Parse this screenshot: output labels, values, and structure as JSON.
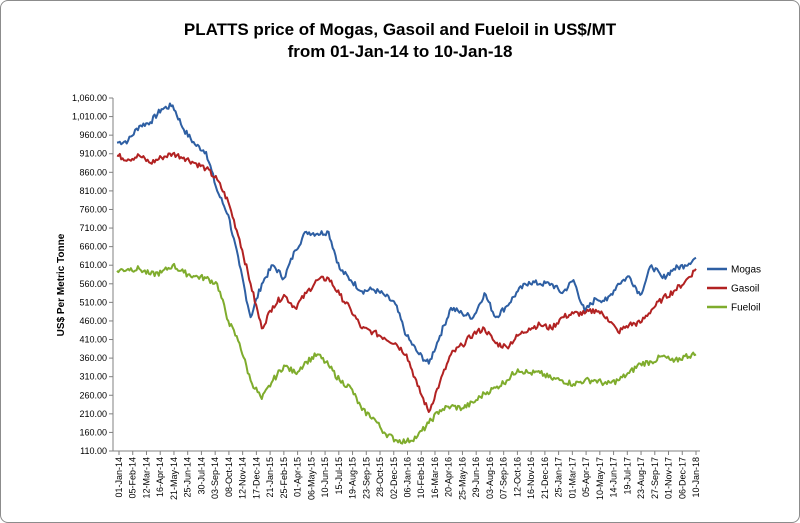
{
  "chart_data": {
    "type": "line",
    "title": "PLATTS price of Mogas, Gasoil and Fueloil in US$/MT",
    "subtitle": "from 01-Jan-14 to 10-Jan-18",
    "ylabel": "US$ Per Metric Tonne",
    "xlabel": "",
    "ylim": [
      110,
      1060
    ],
    "yticks": [
      "110.00",
      "160.00",
      "210.00",
      "260.00",
      "310.00",
      "360.00",
      "410.00",
      "460.00",
      "510.00",
      "560.00",
      "610.00",
      "660.00",
      "710.00",
      "760.00",
      "810.00",
      "860.00",
      "910.00",
      "960.00",
      "1,010.00",
      "1,060.00"
    ],
    "grid": false,
    "legend": "right",
    "x_ticks": [
      "01-Jan-14",
      "05-Feb-14",
      "12-Mar-14",
      "16-Apr-14",
      "21-May-14",
      "25-Jun-14",
      "30-Jul-14",
      "03-Sep-14",
      "08-Oct-14",
      "12-Nov-14",
      "17-Dec-14",
      "21-Jan-15",
      "25-Feb-15",
      "01-Apr-15",
      "06-May-15",
      "10-Jun-15",
      "15-Jul-15",
      "19-Aug-15",
      "23-Sep-15",
      "28-Oct-15",
      "02-Dec-15",
      "06-Jan-16",
      "10-Feb-16",
      "16-Mar-16",
      "20-Apr-16",
      "25-May-16",
      "29-Jun-16",
      "03-Aug-16",
      "07-Sep-16",
      "12-Oct-16",
      "16-Nov-16",
      "21-Dec-16",
      "25-Jan-17",
      "01-Mar-17",
      "05-Apr-17",
      "10-May-17",
      "14-Jun-17",
      "19-Jul-17",
      "23-Aug-17",
      "27-Sep-17",
      "01-Nov-17",
      "06-Dec-17",
      "10-Jan-18"
    ],
    "series": [
      {
        "name": "Mogas",
        "color": "#2e5fa3",
        "values": [
          940,
          945,
          985,
          995,
          1030,
          1040,
          975,
          935,
          915,
          810,
          745,
          610,
          470,
          560,
          610,
          575,
          650,
          700,
          695,
          700,
          600,
          570,
          540,
          545,
          530,
          505,
          420,
          375,
          345,
          420,
          495,
          480,
          470,
          535,
          470,
          500,
          540,
          565,
          560,
          560,
          535,
          570,
          485,
          520,
          515,
          560,
          580,
          530,
          610,
          575,
          600,
          610,
          630
        ]
      },
      {
        "name": "Gasoil",
        "color": "#b22222",
        "values": [
          905,
          895,
          905,
          885,
          900,
          910,
          900,
          885,
          870,
          840,
          780,
          680,
          560,
          440,
          500,
          530,
          495,
          535,
          570,
          575,
          530,
          490,
          440,
          430,
          415,
          400,
          370,
          285,
          215,
          295,
          370,
          395,
          425,
          440,
          400,
          390,
          420,
          440,
          450,
          440,
          470,
          480,
          480,
          490,
          470,
          430,
          450,
          455,
          490,
          520,
          540,
          565,
          600
        ]
      },
      {
        "name": "Fueloil",
        "color": "#7fac2d",
        "values": [
          595,
          600,
          600,
          585,
          590,
          610,
          590,
          580,
          575,
          560,
          460,
          400,
          300,
          250,
          300,
          340,
          320,
          350,
          370,
          340,
          300,
          280,
          220,
          200,
          160,
          140,
          135,
          150,
          185,
          220,
          230,
          225,
          240,
          265,
          280,
          300,
          330,
          320,
          320,
          305,
          300,
          290,
          300,
          300,
          290,
          300,
          320,
          345,
          350,
          365,
          350,
          365,
          370
        ]
      }
    ]
  }
}
